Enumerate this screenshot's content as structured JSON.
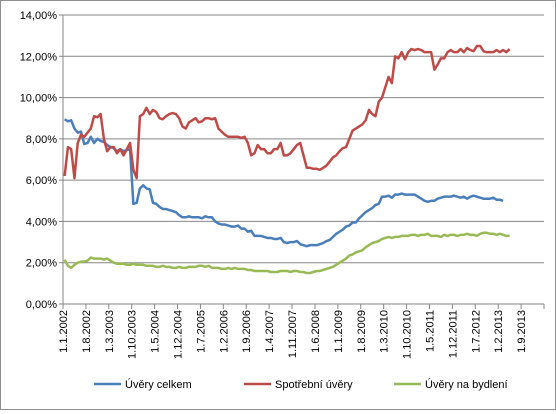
{
  "chart_data": {
    "type": "line",
    "title": "",
    "xlabel": "",
    "ylabel": "",
    "ylim": [
      0,
      14
    ],
    "y_ticks": [
      "0,00%",
      "2,00%",
      "4,00%",
      "6,00%",
      "8,00%",
      "10,00%",
      "12,00%",
      "14,00%"
    ],
    "y_tick_values": [
      0,
      2,
      4,
      6,
      8,
      10,
      12,
      14
    ],
    "x_tick_labels": [
      "1.1.2002",
      "1.8.2002",
      "1.3.2003",
      "1.10.2003",
      "1.5.2004",
      "1.12.2004",
      "1.7.2005",
      "1.2.2006",
      "1.9.2006",
      "1.4.2007",
      "1.11.2007",
      "1.6.2008",
      "1.1.2009",
      "1.8.2009",
      "1.3.2010",
      "1.10.2010",
      "1.5.2011",
      "1.12.2011",
      "1.7.2012",
      "1.2.2013",
      "1.9.2013"
    ],
    "grid": true,
    "legend_position": "bottom",
    "x_start": "2002-01",
    "frequency": "monthly",
    "series": [
      {
        "name": "Úvěry celkem",
        "color": "#4a7ebb",
        "values": [
          8.95,
          8.85,
          8.9,
          8.5,
          8.3,
          8.35,
          7.75,
          7.8,
          8.1,
          7.8,
          8.0,
          7.9,
          7.85,
          7.7,
          7.6,
          7.55,
          7.4,
          7.5,
          7.4,
          7.45,
          7.5,
          4.85,
          4.9,
          5.6,
          5.75,
          5.6,
          5.55,
          4.9,
          4.85,
          4.7,
          4.6,
          4.6,
          4.55,
          4.5,
          4.45,
          4.3,
          4.2,
          4.2,
          4.25,
          4.2,
          4.2,
          4.2,
          4.15,
          4.25,
          4.2,
          4.2,
          4.0,
          3.9,
          3.85,
          3.85,
          3.8,
          3.75,
          3.75,
          3.8,
          3.65,
          3.65,
          3.5,
          3.55,
          3.3,
          3.3,
          3.3,
          3.25,
          3.2,
          3.2,
          3.15,
          3.15,
          3.2,
          3.0,
          2.95,
          3.0,
          3.0,
          3.05,
          2.9,
          2.85,
          2.8,
          2.85,
          2.85,
          2.85,
          2.9,
          2.95,
          3.05,
          3.1,
          3.25,
          3.4,
          3.5,
          3.6,
          3.75,
          3.8,
          3.95,
          3.95,
          4.15,
          4.3,
          4.45,
          4.55,
          4.65,
          4.8,
          4.85,
          5.2,
          5.2,
          5.25,
          5.15,
          5.3,
          5.3,
          5.35,
          5.3,
          5.3,
          5.3,
          5.3,
          5.2,
          5.1,
          5.0,
          4.95,
          5.0,
          5.0,
          5.1,
          5.15,
          5.2,
          5.2,
          5.2,
          5.25,
          5.2,
          5.15,
          5.2,
          5.1,
          5.2,
          5.25,
          5.2,
          5.15,
          5.1,
          5.1,
          5.1,
          5.15,
          5.05,
          5.05,
          5.0
        ]
      },
      {
        "name": "Spotřební úvěry",
        "color": "#be4b48",
        "values": [
          6.2,
          7.6,
          7.5,
          6.1,
          7.8,
          8.2,
          8.1,
          8.3,
          8.5,
          9.1,
          9.05,
          9.2,
          8.0,
          7.4,
          7.6,
          7.6,
          7.3,
          7.5,
          7.2,
          7.5,
          7.8,
          6.5,
          6.1,
          9.1,
          9.2,
          9.5,
          9.2,
          9.4,
          9.3,
          9.0,
          8.95,
          9.1,
          9.2,
          9.25,
          9.2,
          9.0,
          8.6,
          8.5,
          8.8,
          8.9,
          9.0,
          8.8,
          8.85,
          9.0,
          9.0,
          8.95,
          9.0,
          8.5,
          8.35,
          8.2,
          8.1,
          8.1,
          8.1,
          8.1,
          8.05,
          8.1,
          7.8,
          7.2,
          7.3,
          7.7,
          7.5,
          7.5,
          7.3,
          7.3,
          7.5,
          7.5,
          7.8,
          7.2,
          7.2,
          7.3,
          7.5,
          7.7,
          7.8,
          7.2,
          6.6,
          6.6,
          6.55,
          6.55,
          6.5,
          6.6,
          6.7,
          6.9,
          7.1,
          7.2,
          7.4,
          7.55,
          7.6,
          8.0,
          8.4,
          8.5,
          8.6,
          8.7,
          8.9,
          9.4,
          9.2,
          9.1,
          9.8,
          10.0,
          10.5,
          11.0,
          10.7,
          12.0,
          11.9,
          12.2,
          11.85,
          12.2,
          12.35,
          12.3,
          12.35,
          12.3,
          12.2,
          12.2,
          12.2,
          11.35,
          11.6,
          11.9,
          11.9,
          12.2,
          12.3,
          12.2,
          12.2,
          12.35,
          12.2,
          12.4,
          12.3,
          12.25,
          12.5,
          12.5,
          12.25,
          12.2,
          12.2,
          12.2,
          12.3,
          12.2,
          12.3,
          12.2,
          12.35
        ]
      },
      {
        "name": "Úvěry na bydlení",
        "color": "#98b954",
        "values": [
          2.15,
          1.85,
          1.75,
          1.9,
          2.0,
          2.05,
          2.05,
          2.1,
          2.25,
          2.2,
          2.2,
          2.2,
          2.15,
          2.2,
          2.1,
          2.0,
          1.95,
          1.95,
          1.95,
          1.9,
          1.9,
          1.95,
          1.9,
          1.9,
          1.9,
          1.85,
          1.85,
          1.85,
          1.8,
          1.8,
          1.85,
          1.8,
          1.8,
          1.75,
          1.75,
          1.8,
          1.75,
          1.75,
          1.8,
          1.8,
          1.8,
          1.85,
          1.85,
          1.8,
          1.85,
          1.75,
          1.75,
          1.75,
          1.7,
          1.7,
          1.75,
          1.7,
          1.75,
          1.7,
          1.7,
          1.7,
          1.65,
          1.65,
          1.6,
          1.6,
          1.6,
          1.6,
          1.6,
          1.55,
          1.55,
          1.55,
          1.6,
          1.6,
          1.6,
          1.55,
          1.6,
          1.6,
          1.55,
          1.55,
          1.5,
          1.5,
          1.55,
          1.6,
          1.6,
          1.65,
          1.7,
          1.75,
          1.8,
          1.9,
          2.0,
          2.1,
          2.2,
          2.35,
          2.4,
          2.5,
          2.55,
          2.6,
          2.75,
          2.85,
          2.95,
          3.0,
          3.05,
          3.15,
          3.2,
          3.25,
          3.2,
          3.25,
          3.25,
          3.3,
          3.3,
          3.3,
          3.35,
          3.35,
          3.3,
          3.35,
          3.35,
          3.4,
          3.3,
          3.3,
          3.3,
          3.25,
          3.35,
          3.3,
          3.35,
          3.35,
          3.3,
          3.35,
          3.35,
          3.4,
          3.35,
          3.35,
          3.3,
          3.4,
          3.45,
          3.45,
          3.4,
          3.4,
          3.35,
          3.4,
          3.35,
          3.3,
          3.3
        ]
      }
    ]
  }
}
